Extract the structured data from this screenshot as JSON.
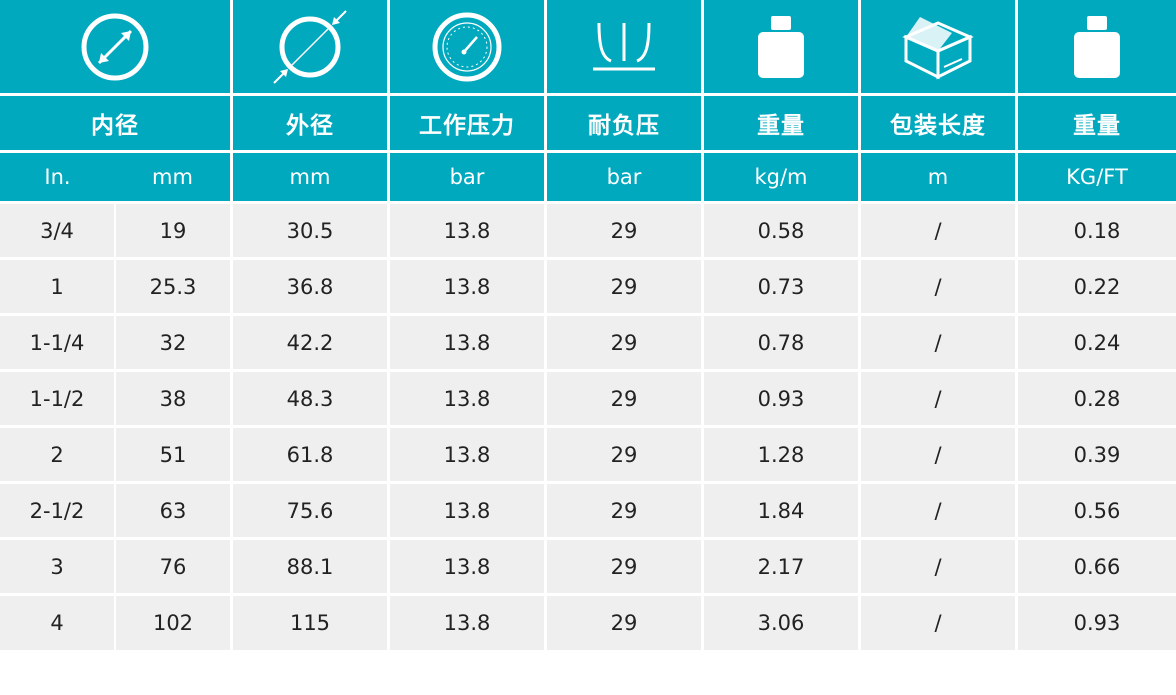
{
  "icons": [
    {
      "name": "inner-diameter-icon"
    },
    {
      "name": "outer-diameter-icon"
    },
    {
      "name": "pressure-gauge-icon"
    },
    {
      "name": "burst-pressure-icon"
    },
    {
      "name": "weight-icon"
    },
    {
      "name": "package-box-icon"
    },
    {
      "name": "weight-icon"
    }
  ],
  "headers": [
    "内径",
    "外径",
    "工作压力",
    "耐负压",
    "重量",
    "包装长度",
    "重量"
  ],
  "units": [
    "In.",
    "mm",
    "mm",
    "bar",
    "bar",
    "kg/m",
    "m",
    "KG/FT"
  ],
  "rows": [
    [
      "3/4",
      "19",
      "30.5",
      "13.8",
      "29",
      "0.58",
      "/",
      "0.18"
    ],
    [
      "1",
      "25.3",
      "36.8",
      "13.8",
      "29",
      "0.73",
      "/",
      "0.22"
    ],
    [
      "1-1/4",
      "32",
      "42.2",
      "13.8",
      "29",
      "0.78",
      "/",
      "0.24"
    ],
    [
      "1-1/2",
      "38",
      "48.3",
      "13.8",
      "29",
      "0.93",
      "/",
      "0.28"
    ],
    [
      "2",
      "51",
      "61.8",
      "13.8",
      "29",
      "1.28",
      "/",
      "0.39"
    ],
    [
      "2-1/2",
      "63",
      "75.6",
      "13.8",
      "29",
      "1.84",
      "/",
      "0.56"
    ],
    [
      "3",
      "76",
      "88.1",
      "13.8",
      "29",
      "2.17",
      "/",
      "0.66"
    ],
    [
      "4",
      "102",
      "115",
      "13.8",
      "29",
      "3.06",
      "/",
      "0.93"
    ]
  ],
  "colors": {
    "header_bg": "#00a9be",
    "row_bg": "#efefef",
    "header_text": "#ffffff",
    "body_text": "#222222"
  }
}
